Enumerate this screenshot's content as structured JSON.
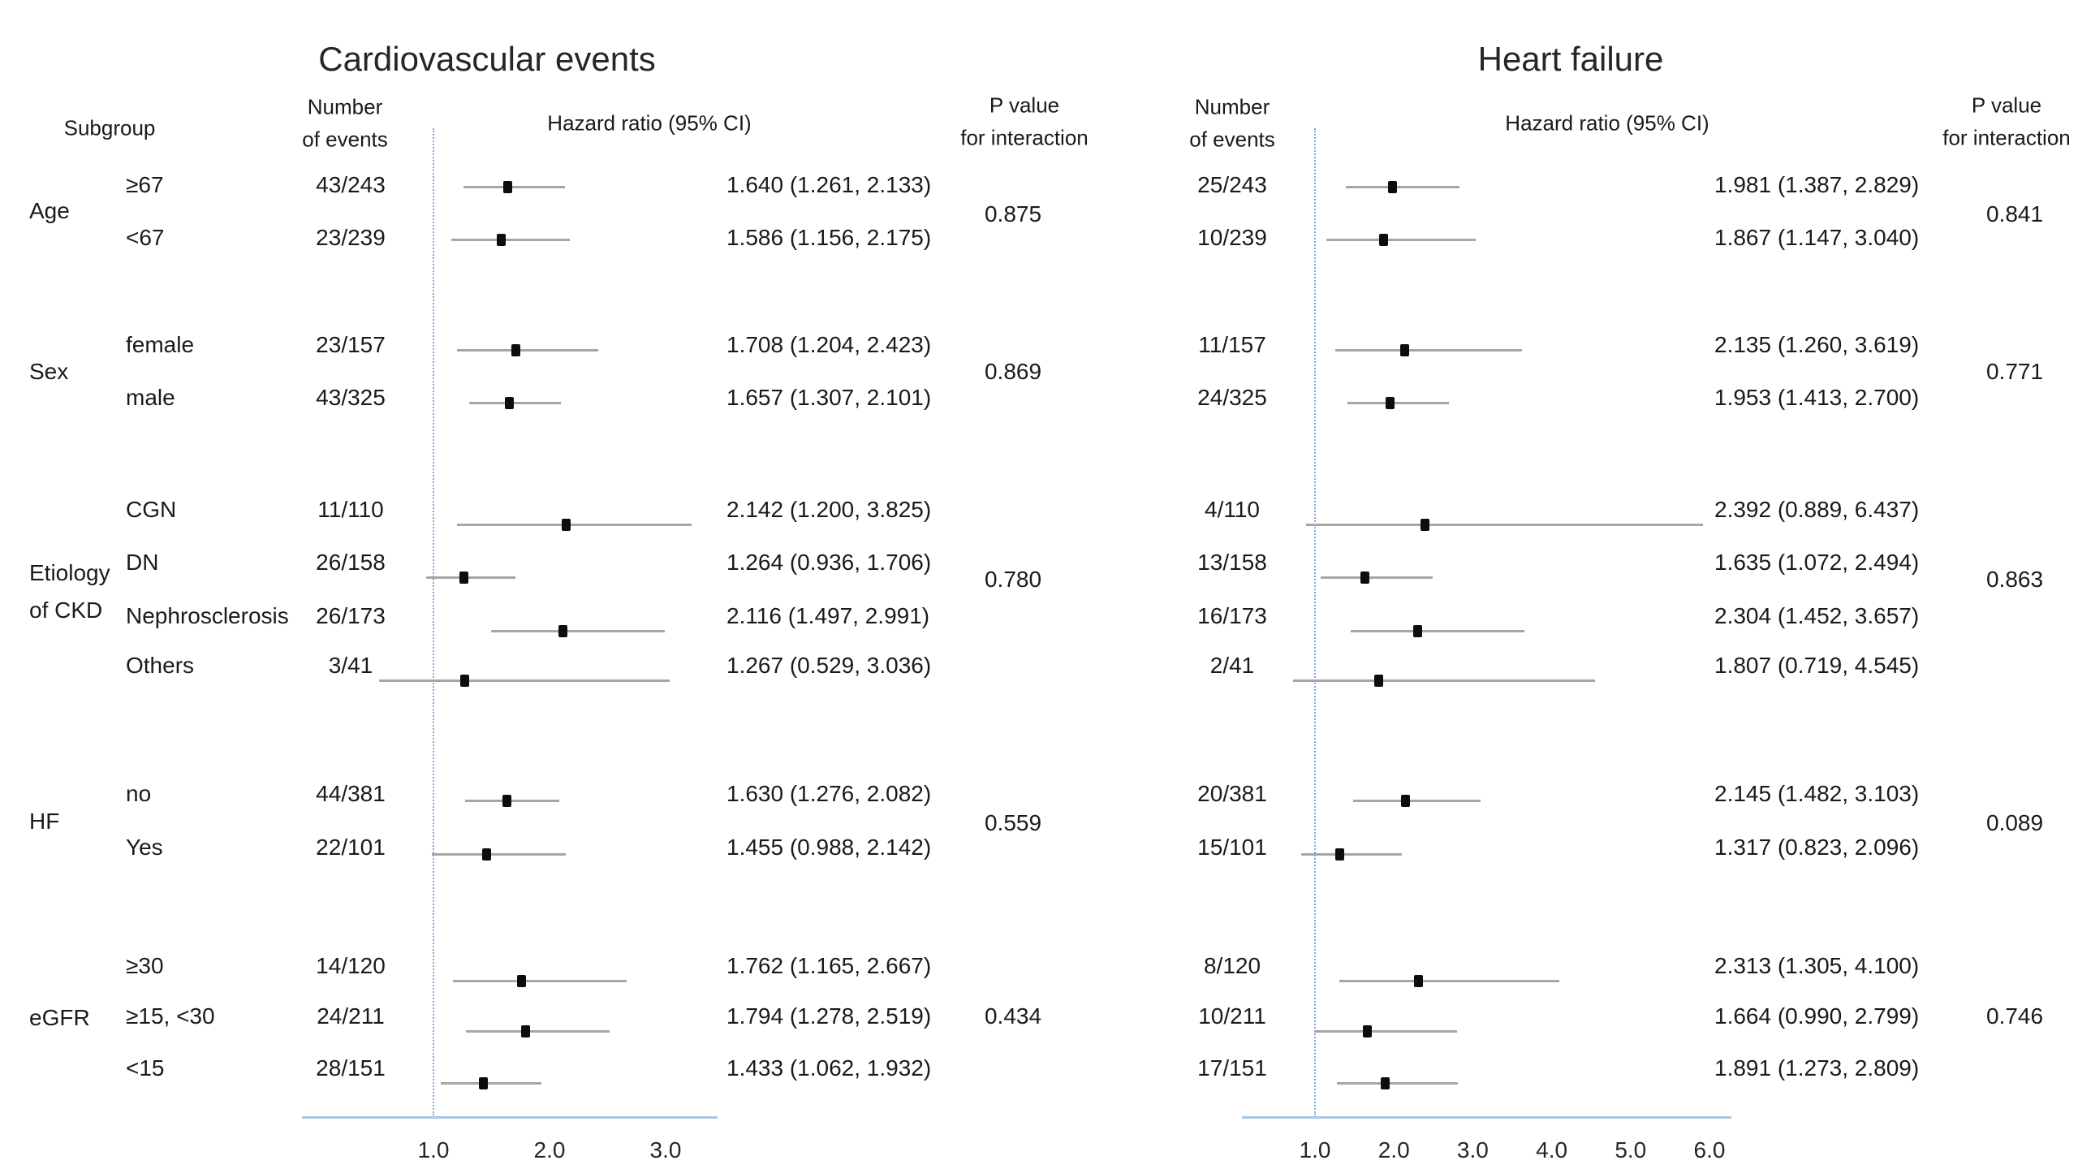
{
  "chart_data": {
    "type": "forest",
    "subgroup_header": "Subgroup",
    "groups": [
      {
        "label_lines": [
          "Age"
        ],
        "subgroups": [
          "≥67",
          "<67"
        ]
      },
      {
        "label_lines": [
          "Sex"
        ],
        "subgroups": [
          "female",
          "male"
        ]
      },
      {
        "label_lines": [
          "Etiology",
          "of CKD"
        ],
        "subgroups": [
          "CGN",
          "DN",
          "Nephrosclerosis",
          "Others"
        ]
      },
      {
        "label_lines": [
          "HF"
        ],
        "subgroups": [
          "no",
          "Yes"
        ]
      },
      {
        "label_lines": [
          "eGFR"
        ],
        "subgroups": [
          "≥30",
          "≥15, <30",
          "<15"
        ]
      }
    ],
    "panels": [
      {
        "title": "Cardiovascular events",
        "events_header_lines": [
          "Number",
          "of events"
        ],
        "hr_header": "Hazard ratio (95% CI)",
        "p_header_lines": [
          "P value",
          "for interaction"
        ],
        "axis_ticks": [
          "1.0",
          "2.0",
          "3.0"
        ],
        "axis_tick_values": [
          1,
          2,
          3
        ],
        "ref_value": 1.0,
        "rows": [
          {
            "events": "43/243",
            "hr": 1.64,
            "lo": 1.261,
            "hi": 2.133,
            "hr_label": "1.640 (1.261, 2.133)"
          },
          {
            "events": "23/239",
            "hr": 1.586,
            "lo": 1.156,
            "hi": 2.175,
            "hr_label": "1.586 (1.156, 2.175)"
          },
          {
            "events": "23/157",
            "hr": 1.708,
            "lo": 1.204,
            "hi": 2.423,
            "hr_label": "1.708 (1.204, 2.423)"
          },
          {
            "events": "43/325",
            "hr": 1.657,
            "lo": 1.307,
            "hi": 2.101,
            "hr_label": "1.657 (1.307, 2.101)"
          },
          {
            "events": "11/110",
            "hr": 2.142,
            "lo": 1.2,
            "hi": 3.825,
            "hr_label": "2.142 (1.200, 3.825)"
          },
          {
            "events": "26/158",
            "hr": 1.264,
            "lo": 0.936,
            "hi": 1.706,
            "hr_label": "1.264 (0.936, 1.706)"
          },
          {
            "events": "26/173",
            "hr": 2.116,
            "lo": 1.497,
            "hi": 2.991,
            "hr_label": "2.116 (1.497, 2.991)"
          },
          {
            "events": "3/41",
            "hr": 1.267,
            "lo": 0.529,
            "hi": 3.036,
            "hr_label": "1.267 (0.529, 3.036)"
          },
          {
            "events": "44/381",
            "hr": 1.63,
            "lo": 1.276,
            "hi": 2.082,
            "hr_label": "1.630 (1.276, 2.082)"
          },
          {
            "events": "22/101",
            "hr": 1.455,
            "lo": 0.988,
            "hi": 2.142,
            "hr_label": "1.455 (0.988, 2.142)"
          },
          {
            "events": "14/120",
            "hr": 1.762,
            "lo": 1.165,
            "hi": 2.667,
            "hr_label": "1.762 (1.165, 2.667)"
          },
          {
            "events": "24/211",
            "hr": 1.794,
            "lo": 1.278,
            "hi": 2.519,
            "hr_label": "1.794 (1.278, 2.519)"
          },
          {
            "events": "28/151",
            "hr": 1.433,
            "lo": 1.062,
            "hi": 1.932,
            "hr_label": "1.433 (1.062, 1.932)"
          }
        ],
        "p_values": [
          "0.875",
          "0.869",
          "0.780",
          "0.559",
          "0.434"
        ]
      },
      {
        "title": "Heart failure",
        "events_header_lines": [
          "Number",
          "of events"
        ],
        "hr_header": "Hazard ratio (95% CI)",
        "p_header_lines": [
          "P value",
          "for interaction"
        ],
        "axis_ticks": [
          "1.0",
          "2.0",
          "3.0",
          "4.0",
          "5.0",
          "6.0"
        ],
        "axis_tick_values": [
          1,
          2,
          3,
          4,
          5,
          6
        ],
        "ref_value": 1.0,
        "rows": [
          {
            "events": "25/243",
            "hr": 1.981,
            "lo": 1.387,
            "hi": 2.829,
            "hr_label": "1.981 (1.387, 2.829)"
          },
          {
            "events": "10/239",
            "hr": 1.867,
            "lo": 1.147,
            "hi": 3.04,
            "hr_label": "1.867 (1.147, 3.040)"
          },
          {
            "events": "11/157",
            "hr": 2.135,
            "lo": 1.26,
            "hi": 3.619,
            "hr_label": "2.135 (1.260, 3.619)"
          },
          {
            "events": "24/325",
            "hr": 1.953,
            "lo": 1.413,
            "hi": 2.7,
            "hr_label": "1.953 (1.413, 2.700)"
          },
          {
            "events": "4/110",
            "hr": 2.392,
            "lo": 0.889,
            "hi": 6.437,
            "hr_label": "2.392 (0.889, 6.437)"
          },
          {
            "events": "13/158",
            "hr": 1.635,
            "lo": 1.072,
            "hi": 2.494,
            "hr_label": "1.635 (1.072, 2.494)"
          },
          {
            "events": "16/173",
            "hr": 2.304,
            "lo": 1.452,
            "hi": 3.657,
            "hr_label": "2.304 (1.452, 3.657)"
          },
          {
            "events": "2/41",
            "hr": 1.807,
            "lo": 0.719,
            "hi": 4.545,
            "hr_label": "1.807 (0.719, 4.545)"
          },
          {
            "events": "20/381",
            "hr": 2.145,
            "lo": 1.482,
            "hi": 3.103,
            "hr_label": "2.145 (1.482, 3.103)"
          },
          {
            "events": "15/101",
            "hr": 1.317,
            "lo": 0.823,
            "hi": 2.096,
            "hr_label": "1.317 (0.823, 2.096)"
          },
          {
            "events": "8/120",
            "hr": 2.313,
            "lo": 1.305,
            "hi": 4.1,
            "hr_label": "2.313 (1.305, 4.100)"
          },
          {
            "events": "10/211",
            "hr": 1.664,
            "lo": 0.99,
            "hi": 2.799,
            "hr_label": "1.664 (0.990, 2.799)"
          },
          {
            "events": "17/151",
            "hr": 1.891,
            "lo": 1.273,
            "hi": 2.809,
            "hr_label": "1.891 (1.273, 2.809)"
          }
        ],
        "p_values": [
          "0.841",
          "0.771",
          "0.863",
          "0.089",
          "0.746"
        ]
      }
    ],
    "colors": {
      "axis_line": "#aac6e3",
      "reference_line": "#7fa8d9",
      "ci_line": "#a6a6a6",
      "marker": "#0d0d0d",
      "text": "#1a1a1a"
    }
  }
}
